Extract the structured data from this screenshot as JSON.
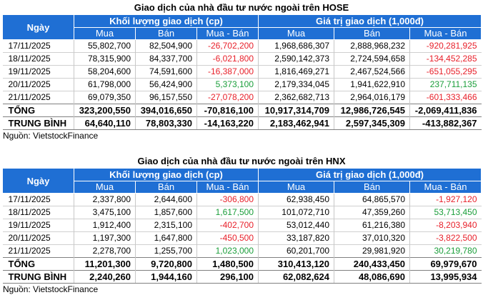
{
  "hose": {
    "title": "Giao dịch của nhà đầu tư nước ngoài trên HOSE",
    "header": {
      "date_label": "Ngày",
      "volume_group": "Khối lượng giao dịch (cp)",
      "value_group": "Giá trị giao dịch (1,000đ)",
      "buy": "Mua",
      "sell": "Bán",
      "net": "Mua - Bán"
    },
    "rows": [
      {
        "date": "17/11/2025",
        "vol_buy": "55,802,700",
        "vol_sell": "82,504,900",
        "vol_net": "-26,702,200",
        "vol_sign": "neg",
        "val_buy": "1,968,686,307",
        "val_sell": "2,888,968,232",
        "val_net": "-920,281,925",
        "val_sign": "neg"
      },
      {
        "date": "18/11/2025",
        "vol_buy": "78,315,900",
        "vol_sell": "84,337,700",
        "vol_net": "-6,021,800",
        "vol_sign": "neg",
        "val_buy": "2,590,142,373",
        "val_sell": "2,724,594,658",
        "val_net": "-134,452,285",
        "val_sign": "neg"
      },
      {
        "date": "19/11/2025",
        "vol_buy": "58,204,600",
        "vol_sell": "74,591,600",
        "vol_net": "-16,387,000",
        "vol_sign": "neg",
        "val_buy": "1,816,469,271",
        "val_sell": "2,467,524,566",
        "val_net": "-651,055,295",
        "val_sign": "neg"
      },
      {
        "date": "20/11/2025",
        "vol_buy": "61,798,000",
        "vol_sell": "56,424,900",
        "vol_net": "5,373,100",
        "vol_sign": "pos",
        "val_buy": "2,179,334,045",
        "val_sell": "1,941,622,910",
        "val_net": "237,711,135",
        "val_sign": "pos"
      },
      {
        "date": "21/11/2025",
        "vol_buy": "69,079,350",
        "vol_sell": "96,157,550",
        "vol_net": "-27,078,200",
        "vol_sign": "neg",
        "val_buy": "2,362,682,713",
        "val_sell": "2,964,016,179",
        "val_net": "-601,333,466",
        "val_sign": "neg"
      }
    ],
    "total": {
      "label": "TỔNG",
      "vol_buy": "323,200,550",
      "vol_sell": "394,016,650",
      "vol_net": "-70,816,100",
      "val_buy": "10,917,314,709",
      "val_sell": "12,986,726,545",
      "val_net": "-2,069,411,836"
    },
    "average": {
      "label": "TRUNG BÌNH",
      "vol_buy": "64,640,110",
      "vol_sell": "78,803,330",
      "vol_net": "-14,163,220",
      "val_buy": "2,183,462,941",
      "val_sell": "2,597,345,309",
      "val_net": "-413,882,367"
    },
    "source": "Nguồn: VietstockFinance"
  },
  "hnx": {
    "title": "Giao dịch của nhà đầu tư nước ngoài trên HNX",
    "header": {
      "date_label": "Ngày",
      "volume_group": "Khối lượng giao dịch (cp)",
      "value_group": "Giá trị giao dịch (1,000đ)",
      "buy": "Mua",
      "sell": "Bán",
      "net": "Mua - Bán"
    },
    "rows": [
      {
        "date": "17/11/2025",
        "vol_buy": "2,337,800",
        "vol_sell": "2,644,600",
        "vol_net": "-306,800",
        "vol_sign": "neg",
        "val_buy": "62,938,450",
        "val_sell": "64,865,570",
        "val_net": "-1,927,120",
        "val_sign": "neg"
      },
      {
        "date": "18/11/2025",
        "vol_buy": "3,475,100",
        "vol_sell": "1,857,600",
        "vol_net": "1,617,500",
        "vol_sign": "pos",
        "val_buy": "101,072,710",
        "val_sell": "47,359,260",
        "val_net": "53,713,450",
        "val_sign": "pos"
      },
      {
        "date": "19/11/2025",
        "vol_buy": "1,912,400",
        "vol_sell": "2,315,100",
        "vol_net": "-402,700",
        "vol_sign": "neg",
        "val_buy": "53,012,440",
        "val_sell": "61,216,380",
        "val_net": "-8,203,940",
        "val_sign": "neg"
      },
      {
        "date": "20/11/2025",
        "vol_buy": "1,197,300",
        "vol_sell": "1,647,800",
        "vol_net": "-450,500",
        "vol_sign": "neg",
        "val_buy": "33,187,820",
        "val_sell": "37,010,320",
        "val_net": "-3,822,500",
        "val_sign": "neg"
      },
      {
        "date": "21/11/2025",
        "vol_buy": "2,278,700",
        "vol_sell": "1,255,700",
        "vol_net": "1,023,000",
        "vol_sign": "pos",
        "val_buy": "60,201,700",
        "val_sell": "29,981,920",
        "val_net": "30,219,780",
        "val_sign": "pos"
      }
    ],
    "total": {
      "label": "TỔNG",
      "vol_buy": "11,201,300",
      "vol_sell": "9,720,800",
      "vol_net": "1,480,500",
      "val_buy": "310,413,120",
      "val_sell": "240,433,450",
      "val_net": "69,979,670"
    },
    "average": {
      "label": "TRUNG BÌNH",
      "vol_buy": "2,240,260",
      "vol_sell": "1,944,160",
      "vol_net": "296,100",
      "val_buy": "62,082,624",
      "val_sell": "48,086,690",
      "val_net": "13,995,934"
    },
    "source": "Nguồn: VietstockFinance"
  },
  "colors": {
    "header_bg": "#1f6fd4",
    "negative": "#e8202a",
    "positive": "#1a9e3a"
  }
}
